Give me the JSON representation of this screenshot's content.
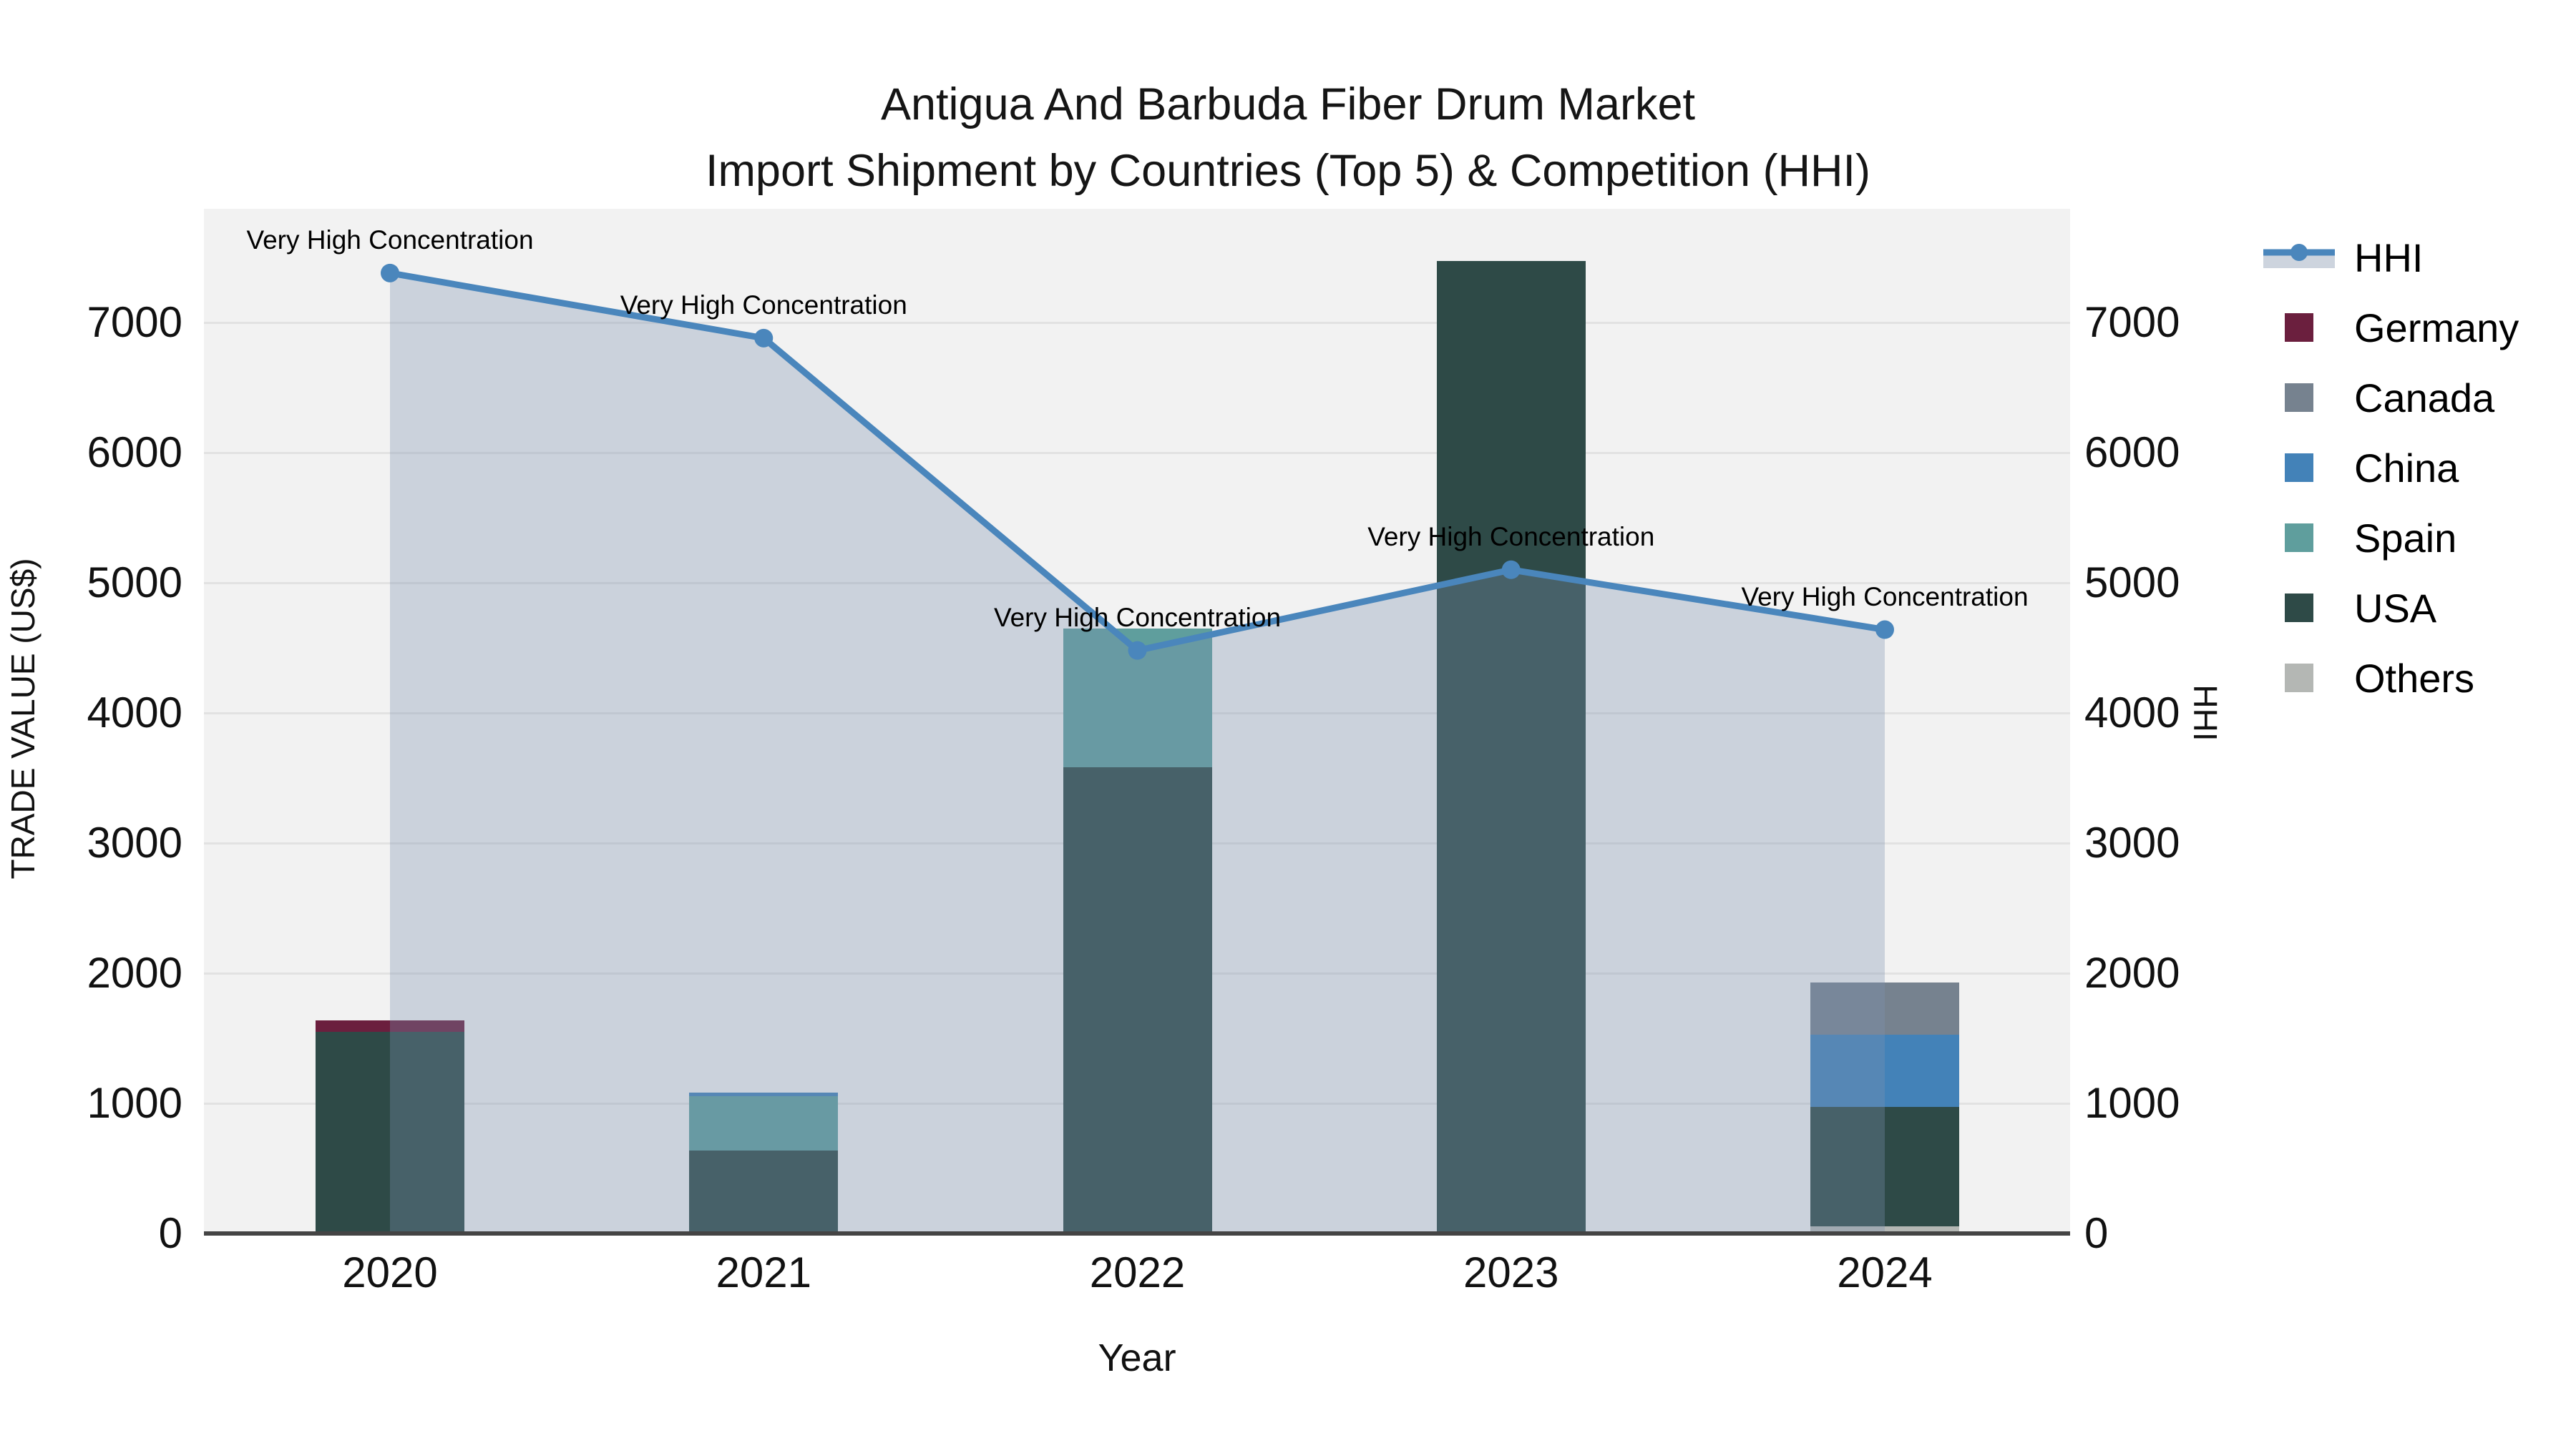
{
  "title": {
    "line1": "Antigua And Barbuda Fiber Drum Market",
    "line2": "Import Shipment by Countries (Top 5) & Competition (HHI)"
  },
  "axes": {
    "y_left_label": "TRADE VALUE (US$)",
    "y_right_label": "HHI",
    "x_label": "Year",
    "y_tick_labels": [
      "0",
      "1000",
      "2000",
      "3000",
      "4000",
      "5000",
      "6000",
      "7000"
    ],
    "x_tick_labels": [
      "2020",
      "2021",
      "2022",
      "2023",
      "2024"
    ]
  },
  "legend": {
    "items": [
      {
        "label": "HHI",
        "type": "line",
        "color_key": "hhi_line"
      },
      {
        "label": "Germany",
        "type": "swatch",
        "color_key": "germany"
      },
      {
        "label": "Canada",
        "type": "swatch",
        "color_key": "canada"
      },
      {
        "label": "China",
        "type": "swatch",
        "color_key": "china"
      },
      {
        "label": "Spain",
        "type": "swatch",
        "color_key": "spain"
      },
      {
        "label": "USA",
        "type": "swatch",
        "color_key": "usa"
      },
      {
        "label": "Others",
        "type": "swatch",
        "color_key": "others"
      }
    ]
  },
  "colors": {
    "hhi_line": "#4a86bc",
    "area_fill": "rgba(124,145,175,0.33)",
    "germany": "#6b1f3e",
    "canada": "#76828f",
    "china": "#4382b8",
    "spain": "#5f9e9d",
    "usa": "#2e4a47",
    "others": "#b4b7b4",
    "plot_bg": "#f2f2f2",
    "grid_line": "#e2e2e2",
    "axis_line": "#444444",
    "legend_area_band": "#cdd4de",
    "text": "#111111"
  },
  "chart_data": {
    "type": "combo: stacked bar (trade value, left axis) + line with filled area (HHI, right axis)",
    "categories": [
      "2020",
      "2021",
      "2022",
      "2023",
      "2024"
    ],
    "bar_series_bottom_to_top": [
      {
        "name": "Others",
        "values": [
          0,
          0,
          0,
          0,
          55
        ]
      },
      {
        "name": "USA",
        "values": [
          1550,
          640,
          3580,
          7470,
          915
        ]
      },
      {
        "name": "Spain",
        "values": [
          0,
          415,
          1070,
          0,
          0
        ]
      },
      {
        "name": "China",
        "values": [
          0,
          25,
          0,
          0,
          560
        ]
      },
      {
        "name": "Canada",
        "values": [
          0,
          0,
          0,
          0,
          400
        ]
      },
      {
        "name": "Germany",
        "values": [
          90,
          0,
          0,
          0,
          0
        ]
      }
    ],
    "bar_totals": [
      1640,
      1080,
      4650,
      7470,
      1930
    ],
    "line_series": {
      "name": "HHI",
      "values": [
        7380,
        6880,
        4480,
        5100,
        4640
      ]
    },
    "point_annotations": [
      "Very High Concentration",
      "Very High Concentration",
      "Very High Concentration",
      "Very High Concentration",
      "Very High Concentration"
    ],
    "title": "Antigua And Barbuda Fiber Drum Market Import Shipment by Countries (Top 5) & Competition (HHI)",
    "xlabel": "Year",
    "ylabel_left": "TRADE VALUE (US$)",
    "ylabel_right": "HHI",
    "y_ticks": [
      0,
      1000,
      2000,
      3000,
      4000,
      5000,
      6000,
      7000
    ],
    "ylim": [
      0,
      7875
    ],
    "grid": "horizontal",
    "legend_position": "right"
  }
}
